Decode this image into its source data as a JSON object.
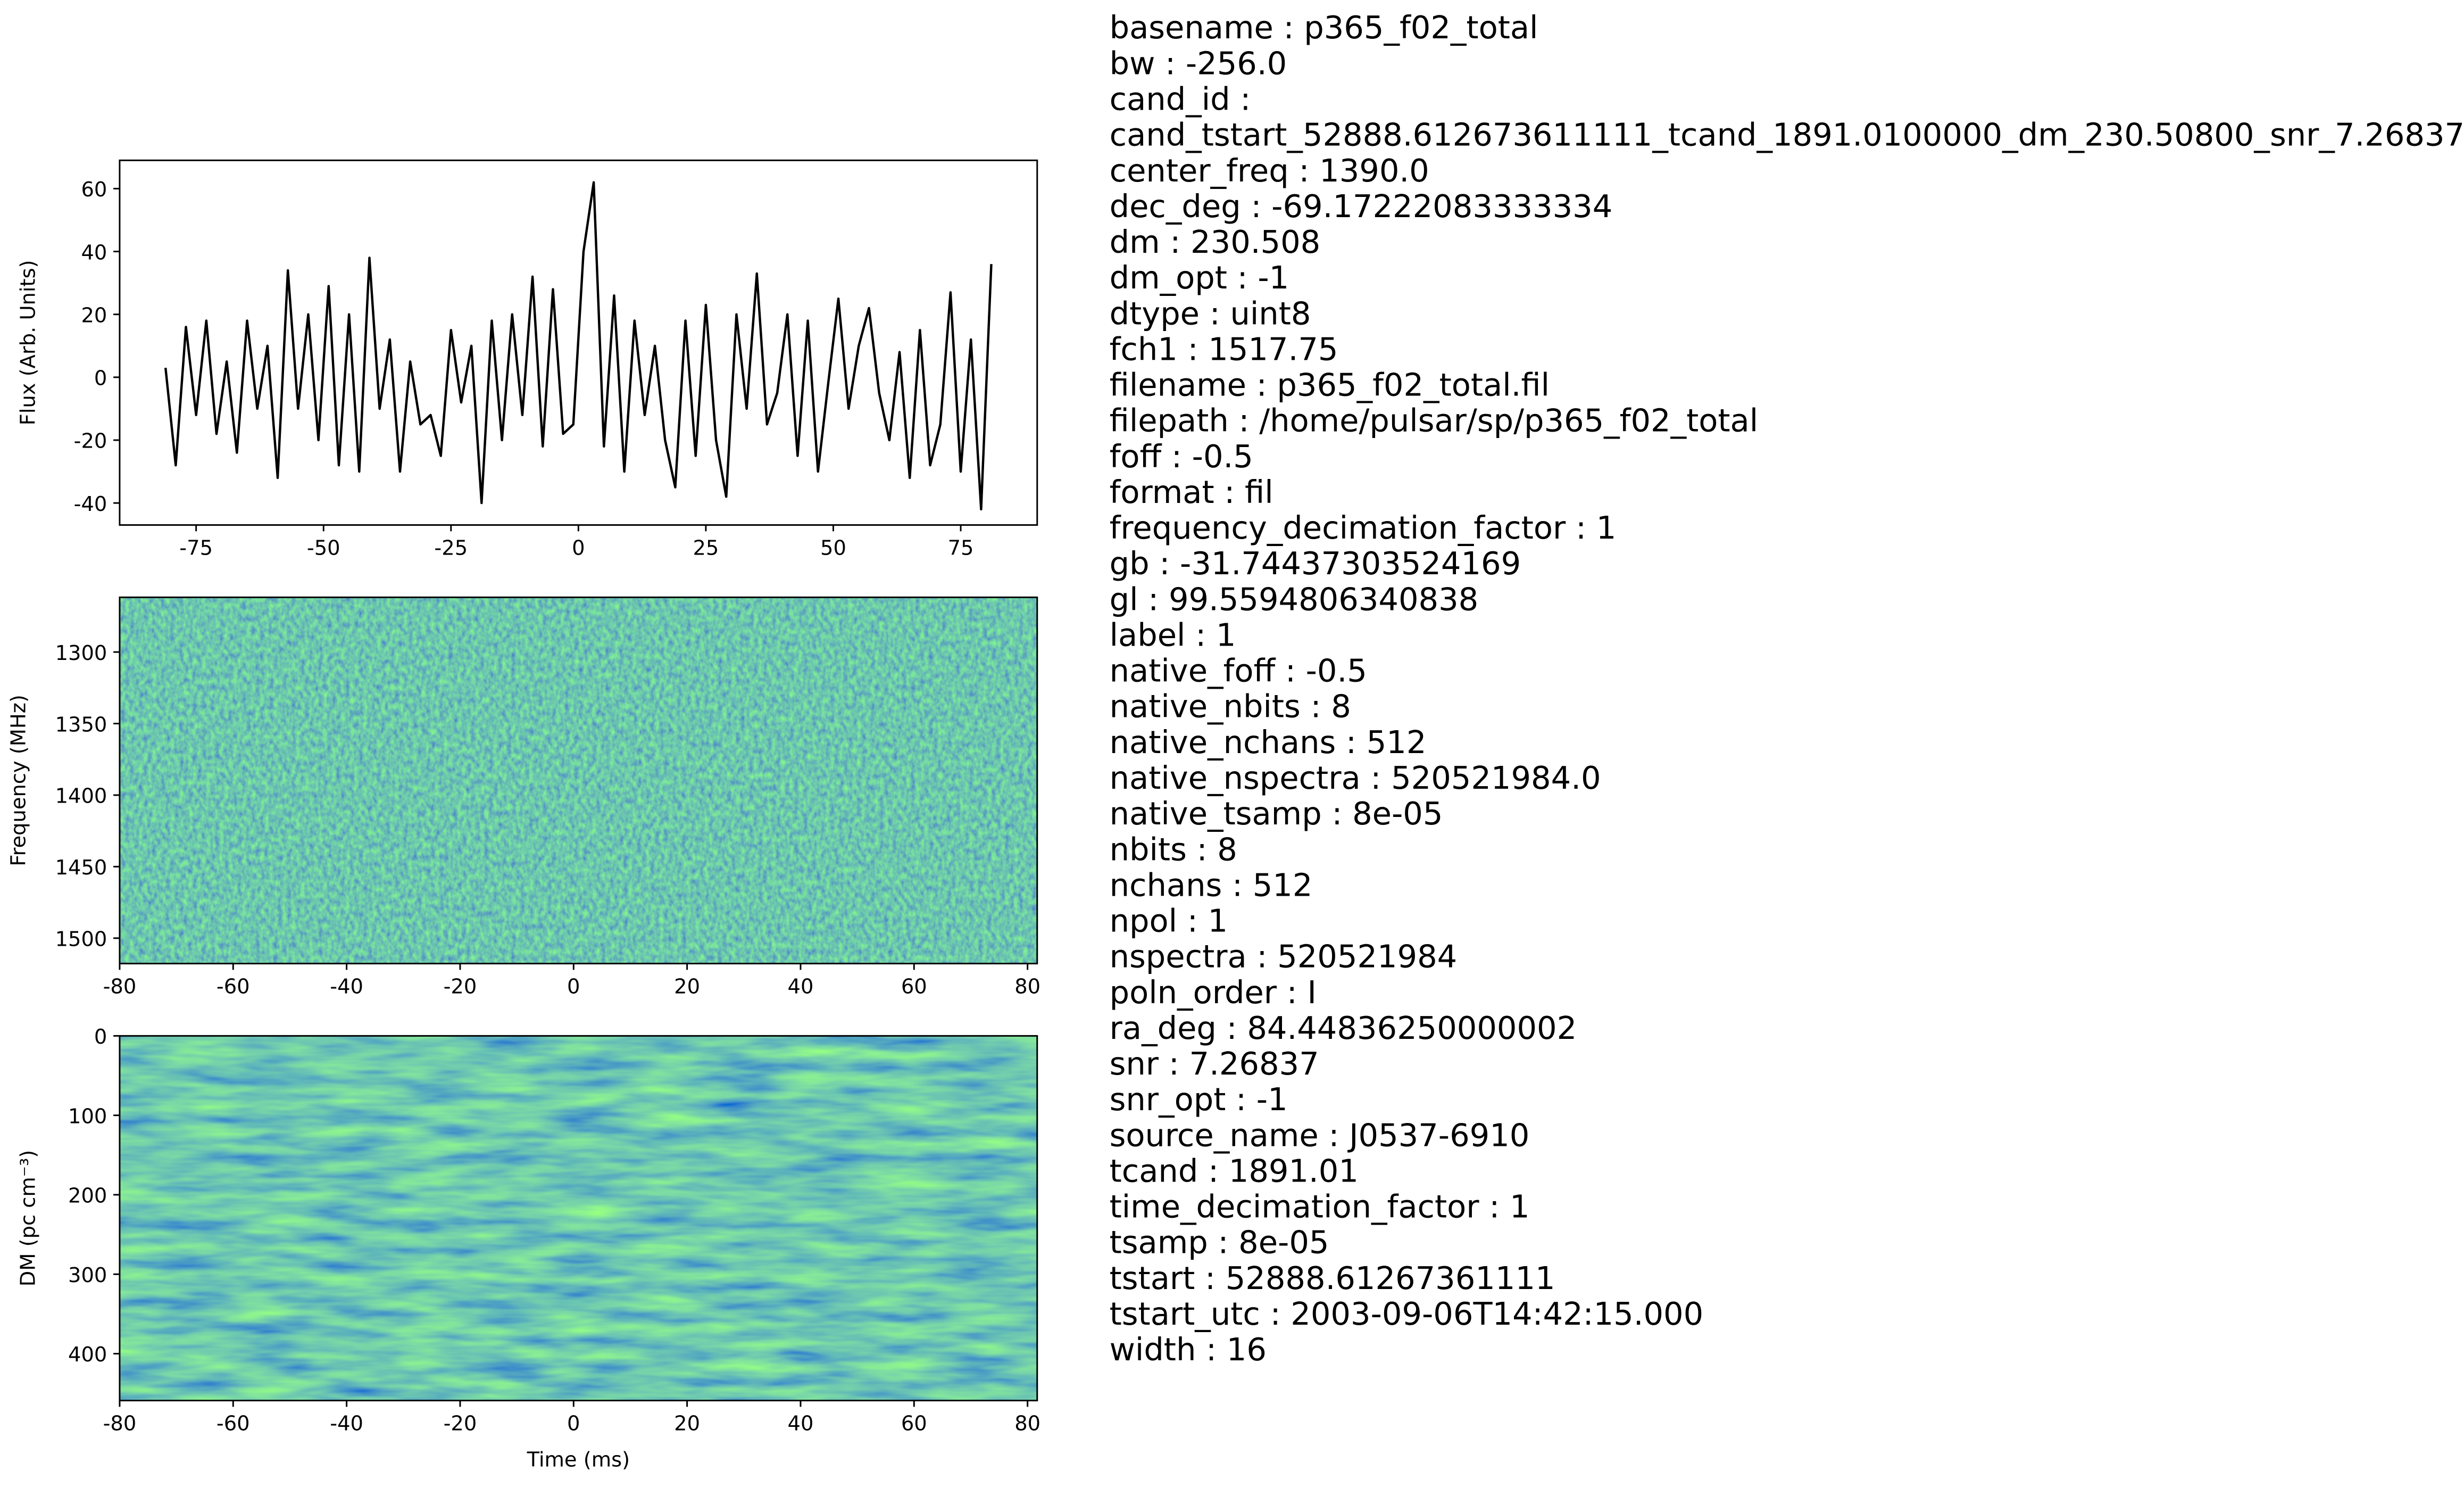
{
  "chart_data": [
    {
      "type": "line",
      "ylabel": "Flux (Arb. Units)",
      "color": "#000000",
      "x": [
        -81,
        -79,
        -77,
        -75,
        -73,
        -71,
        -69,
        -67,
        -65,
        -63,
        -61,
        -59,
        -57,
        -55,
        -53,
        -51,
        -49,
        -47,
        -45,
        -43,
        -41,
        -39,
        -37,
        -35,
        -33,
        -31,
        -29,
        -27,
        -25,
        -23,
        -21,
        -19,
        -17,
        -15,
        -13,
        -11,
        -9,
        -7,
        -5,
        -3,
        -1,
        1,
        3,
        5,
        7,
        9,
        11,
        13,
        15,
        17,
        19,
        21,
        23,
        25,
        27,
        29,
        31,
        33,
        35,
        37,
        39,
        41,
        43,
        45,
        47,
        49,
        51,
        53,
        55,
        57,
        59,
        61,
        63,
        65,
        67,
        69,
        71,
        73,
        75,
        77,
        79,
        81
      ],
      "values": [
        3,
        -28,
        16,
        -12,
        18,
        -18,
        5,
        -24,
        18,
        -10,
        10,
        -32,
        34,
        -10,
        20,
        -20,
        29,
        -28,
        20,
        -30,
        38,
        -10,
        12,
        -30,
        5,
        -15,
        -12,
        -25,
        15,
        -8,
        10,
        -40,
        18,
        -20,
        20,
        -12,
        32,
        -22,
        28,
        -18,
        -15,
        40,
        62,
        -22,
        26,
        -30,
        18,
        -12,
        10,
        -20,
        -35,
        18,
        -25,
        23,
        -20,
        -38,
        20,
        -10,
        33,
        -15,
        -5,
        20,
        -25,
        18,
        -30,
        -2,
        25,
        -10,
        10,
        22,
        -5,
        -20,
        8,
        -32,
        15,
        -28,
        -15,
        27,
        -30,
        12,
        -42,
        36
      ],
      "xlim": [
        -90,
        90
      ],
      "xticks": [
        -75,
        -50,
        -25,
        0,
        25,
        50,
        75
      ],
      "ylim": [
        -47,
        69
      ],
      "yticks": [
        -40,
        -20,
        0,
        20,
        40,
        60
      ]
    },
    {
      "type": "heatmap",
      "ylabel": "Frequency (MHz)",
      "colormap": "viridis",
      "xlim": [
        -80,
        81.7
      ],
      "xticks": [
        -80,
        -60,
        -40,
        -20,
        0,
        20,
        40,
        60,
        80
      ],
      "ylim": [
        1517.75,
        1261.75
      ],
      "yticks": [
        1300,
        1350,
        1400,
        1450,
        1500
      ]
    },
    {
      "type": "heatmap",
      "ylabel": "DM (pc cm⁻³)",
      "xlabel": "Time (ms)",
      "colormap": "viridis",
      "xlim": [
        -80,
        81.7
      ],
      "xticks": [
        -80,
        -60,
        -40,
        -20,
        0,
        20,
        40,
        60,
        80
      ],
      "ylim": [
        459,
        0
      ],
      "yticks": [
        0,
        100,
        200,
        300,
        400
      ]
    }
  ],
  "parameters": [
    "basename : p365_f02_total",
    "bw : -256.0",
    "cand_id :",
    "cand_tstart_52888.612673611111_tcand_1891.0100000_dm_230.50800_snr_7.26837",
    "center_freq : 1390.0",
    "dec_deg : -69.17222083333334",
    "dm : 230.508",
    "dm_opt : -1",
    "dtype : uint8",
    "fch1 : 1517.75",
    "filename : p365_f02_total.fil",
    "filepath : /home/pulsar/sp/p365_f02_total",
    "foff : -0.5",
    "format : fil",
    "frequency_decimation_factor : 1",
    "gb : -31.74437303524169",
    "gl : 99.5594806340838",
    "label : 1",
    "native_foff : -0.5",
    "native_nbits : 8",
    "native_nchans : 512",
    "native_nspectra : 520521984.0",
    "native_tsamp : 8e-05",
    "nbits : 8",
    "nchans : 512",
    "npol : 1",
    "nspectra : 520521984",
    "poln_order : I",
    "ra_deg : 84.44836250000002",
    "snr : 7.26837",
    "snr_opt : -1",
    "source_name : J0537-6910",
    "tcand : 1891.01",
    "time_decimation_factor : 1",
    "tsamp : 8e-05",
    "tstart : 52888.61267361111",
    "tstart_utc : 2003-09-06T14:42:15.000",
    "width : 16"
  ]
}
